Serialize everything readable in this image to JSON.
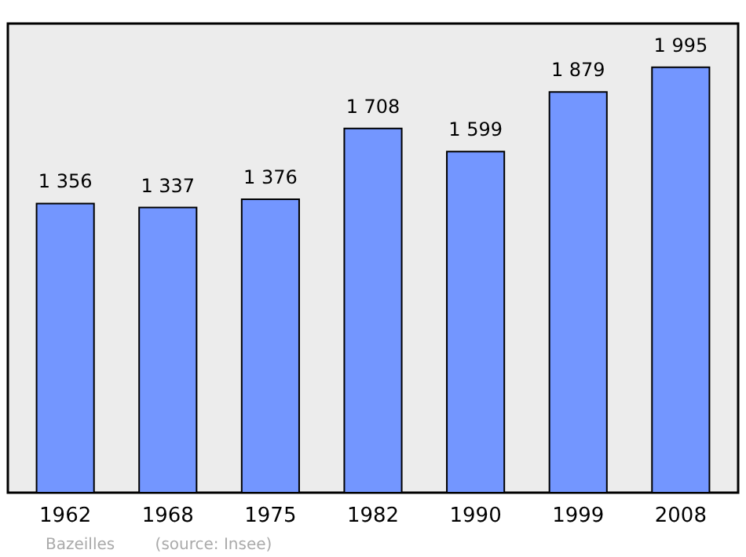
{
  "chart_data": {
    "type": "bar",
    "categories": [
      "1962",
      "1968",
      "1975",
      "1982",
      "1990",
      "1999",
      "2008"
    ],
    "values": [
      1356,
      1337,
      1376,
      1708,
      1599,
      1879,
      1995
    ],
    "value_labels": [
      "1 356",
      "1 337",
      "1 376",
      "1 708",
      "1 599",
      "1 879",
      "1 995"
    ],
    "color": "#7396ff",
    "ylim": [
      0,
      2200
    ],
    "tick_labels": "x",
    "grid": false,
    "annotations": [
      "Bazeilles",
      "(source: Insee)"
    ]
  }
}
